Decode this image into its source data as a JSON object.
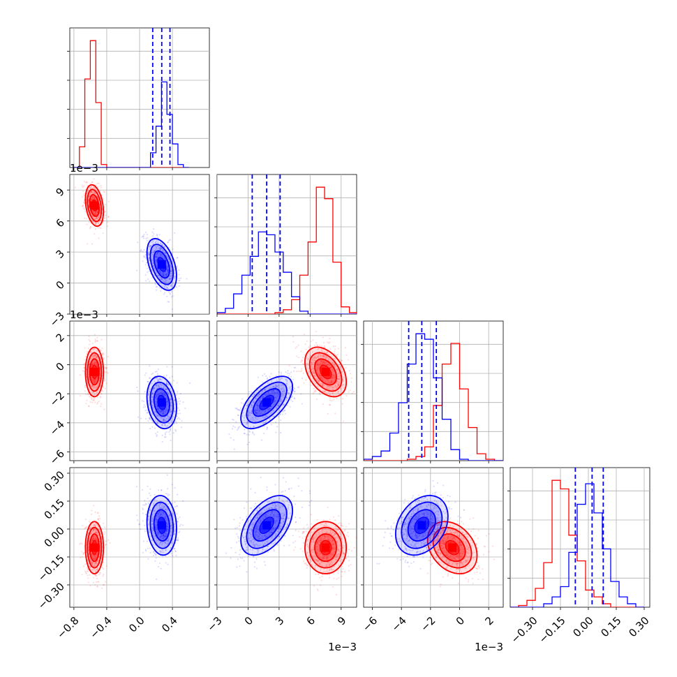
{
  "chart_data": {
    "type": "corner",
    "colors": {
      "series_a": "#ff0000",
      "series_b": "#0000ff"
    },
    "grid": true,
    "parameters": [
      {
        "range": [
          -0.85,
          0.85
        ],
        "ticks": [
          -0.8,
          -0.4,
          0.0,
          0.4
        ],
        "tick_labels": [
          "−0.8",
          "−0.4",
          "0.0",
          "0.4"
        ],
        "offset": ""
      },
      {
        "range": [
          -3.0,
          10.5
        ],
        "ticks": [
          -3,
          0,
          3,
          6,
          9
        ],
        "tick_labels": [
          "−3",
          "0",
          "3",
          "6",
          "9"
        ],
        "offset": "1e−3"
      },
      {
        "range": [
          -6.6,
          3.0
        ],
        "ticks": [
          -6,
          -4,
          -2,
          0,
          2
        ],
        "tick_labels": [
          "−6",
          "−4",
          "−2",
          "0",
          "2"
        ],
        "offset": "1e−3"
      },
      {
        "range": [
          -0.42,
          0.33
        ],
        "ticks": [
          -0.3,
          -0.15,
          0.0,
          0.15,
          0.3
        ],
        "tick_labels": [
          "−0.30",
          "−0.15",
          "0.00",
          "0.15",
          "0.30"
        ],
        "offset": ""
      }
    ],
    "series": [
      {
        "key": "series_a",
        "means": [
          -0.55,
          7.5,
          -0.5,
          -0.1
        ],
        "sds": [
          0.055,
          1.0,
          0.85,
          0.07
        ],
        "correlations": {
          "0-1": -0.3,
          "0-2": 0.0,
          "0-3": 0.0,
          "1-2": -0.4,
          "1-3": 0.0,
          "2-3": -0.3
        },
        "quantile_lines": false
      },
      {
        "key": "series_b",
        "means": [
          0.27,
          1.8,
          -2.6,
          0.02
        ],
        "sds": [
          0.09,
          1.25,
          0.9,
          0.08
        ],
        "correlations": {
          "0-1": -0.45,
          "0-2": -0.2,
          "0-3": -0.1,
          "1-2": 0.6,
          "1-3": 0.5,
          "2-3": 0.3
        },
        "quantile_lines": true,
        "quantiles": [
          [
            0.16,
            0.27,
            0.37
          ],
          [
            0.4,
            1.8,
            3.1
          ],
          [
            -3.5,
            -2.6,
            -1.6
          ],
          [
            -0.07,
            0.02,
            0.08
          ]
        ]
      }
    ],
    "histograms": [
      {
        "x_bins": [
          -0.8,
          -0.733,
          -0.667,
          -0.6,
          -0.533,
          -0.467,
          -0.4,
          -0.333,
          -0.267,
          -0.2,
          -0.133,
          -0.067,
          0.0,
          0.067,
          0.133,
          0.2,
          0.267,
          0.333,
          0.4,
          0.467,
          0.533,
          0.6
        ],
        "series_a": [
          0,
          7,
          30,
          43,
          22,
          1,
          0,
          0,
          0,
          0,
          0,
          0,
          0,
          0,
          0,
          0,
          0,
          0,
          0,
          0,
          0
        ],
        "series_b": [
          0,
          0,
          0,
          0,
          0,
          0,
          0,
          0,
          0,
          0,
          0,
          0,
          0,
          0,
          5,
          14,
          29,
          18,
          8,
          1,
          0
        ]
      },
      {
        "x_bins": [
          -3,
          -2.2,
          -1.4,
          -0.6,
          0.2,
          1.0,
          1.8,
          2.6,
          3.4,
          4.2,
          5.0,
          5.8,
          6.6,
          7.4,
          8.2,
          9.0,
          9.8,
          10.5
        ],
        "series_a": [
          0,
          0,
          0,
          0,
          0,
          0,
          0,
          1,
          3,
          10,
          27,
          50,
          88,
          80,
          36,
          5,
          1
        ],
        "series_b": [
          1,
          4,
          14,
          27,
          40,
          57,
          55,
          43,
          29,
          12,
          2,
          0,
          0,
          0,
          0,
          0,
          0
        ]
      },
      {
        "x_bins": [
          -6.6,
          -6.0,
          -5.4,
          -4.8,
          -4.2,
          -3.6,
          -3.0,
          -2.4,
          -1.8,
          -1.2,
          -0.6,
          0.0,
          0.6,
          1.2,
          1.8,
          2.4,
          3.0
        ],
        "series_a": [
          0,
          0,
          0,
          0,
          0,
          1,
          3,
          10,
          40,
          70,
          85,
          52,
          24,
          5,
          1,
          0
        ],
        "series_b": [
          1,
          3,
          7,
          20,
          42,
          70,
          92,
          88,
          60,
          30,
          8,
          1,
          0,
          0,
          0,
          0
        ]
      },
      {
        "x_bins": [
          -0.42,
          -0.375,
          -0.33,
          -0.285,
          -0.24,
          -0.195,
          -0.15,
          -0.105,
          -0.06,
          -0.015,
          0.03,
          0.075,
          0.12,
          0.165,
          0.21,
          0.255,
          0.3
        ],
        "series_a": [
          0,
          1,
          4,
          11,
          26,
          74,
          69,
          42,
          27,
          10,
          6,
          2,
          0,
          0,
          0,
          0
        ],
        "series_b": [
          0,
          0,
          0,
          0,
          2,
          6,
          12,
          32,
          60,
          72,
          55,
          34,
          15,
          6,
          2,
          0
        ]
      }
    ]
  }
}
